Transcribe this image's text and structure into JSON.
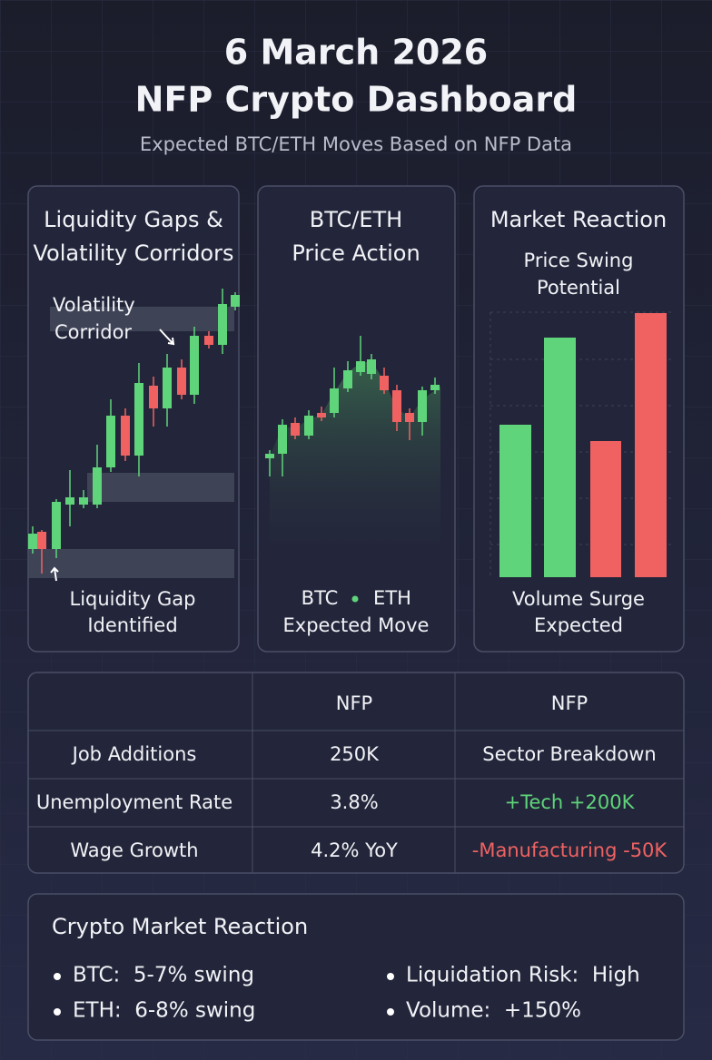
{
  "header": {
    "title_lines": [
      "6 March 2026",
      "NFP Crypto Dashboard"
    ],
    "subtitle": "Expected BTC/ETH Moves Based on NFP Data"
  },
  "panels": [
    {
      "title_lines": [
        "Liquidity Gaps &",
        "Volatility Corridors"
      ],
      "corridor_label": [
        "Volatility",
        "Corridor"
      ],
      "gap_label": [
        "Liquidity Gap",
        "Identified"
      ]
    },
    {
      "title_lines": [
        "BTC/ETH",
        "Price Action"
      ],
      "legend": [
        "BTC",
        "ETH"
      ],
      "caption": "Expected Move"
    },
    {
      "title_lines": [
        "Market Reaction"
      ],
      "subtitle_lines": [
        "Price Swing",
        "Potential"
      ],
      "caption_lines": [
        "Volume Surge",
        "Expected"
      ]
    }
  ],
  "table": {
    "header": [
      "NFP",
      "NFP"
    ],
    "rows": [
      [
        "Job Additions",
        "250K",
        "Sector Breakdown"
      ],
      [
        "Unemployment Rate",
        "3.8%",
        "+Tech +200K"
      ],
      [
        "Wage Growth",
        "4.2% YoY",
        "-Manufacturing -50K"
      ]
    ]
  },
  "reaction": {
    "title": "Crypto Market Reaction",
    "left": [
      "BTC:  5-7% swing",
      "ETH:  6-8% swing"
    ],
    "right": [
      "Liquidation Risk:  High",
      "Volume:  +150%"
    ]
  }
}
